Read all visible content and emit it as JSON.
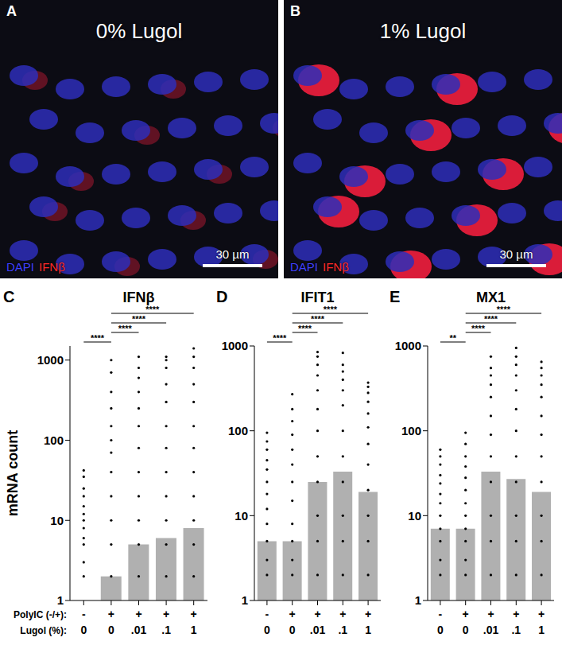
{
  "images": [
    {
      "panel": "A",
      "title": "0% Lugol",
      "stains": [
        {
          "name": "DAPI",
          "color": "#4040ff"
        },
        {
          "name": "IFNβ",
          "color": "#ff2a2a"
        }
      ],
      "scale_bar": "30 µm"
    },
    {
      "panel": "B",
      "title": "1% Lugol",
      "stains": [
        {
          "name": "DAPI",
          "color": "#4040ff"
        },
        {
          "name": "IFNβ",
          "color": "#ff2a2a"
        }
      ],
      "scale_bar": "30 µm"
    }
  ],
  "x_row_labels": [
    "PolyIC (-/+):",
    "Lugol (%):"
  ],
  "chart_data": [
    {
      "panel": "C",
      "type": "bar",
      "title": "IFNβ",
      "y_label": "mRNA count",
      "categories": [
        "0",
        "0",
        ".01",
        ".1",
        "1"
      ],
      "polyic": [
        "-",
        "+",
        "+",
        "+",
        "+"
      ],
      "values": [
        1,
        2,
        5,
        6,
        8
      ],
      "color": "#b0b0b0",
      "point_color": "#000000",
      "points": [
        [
          2,
          3,
          5,
          6,
          8,
          10,
          12,
          15,
          20,
          25,
          35,
          42
        ],
        [
          2,
          5,
          10,
          20,
          40,
          70,
          100,
          150,
          250,
          400,
          700,
          1000
        ],
        [
          2,
          5,
          10,
          20,
          40,
          80,
          150,
          250,
          400,
          600,
          800,
          1100
        ],
        [
          2,
          5,
          10,
          20,
          40,
          80,
          150,
          300,
          500,
          800,
          1000,
          1100
        ],
        [
          2,
          5,
          10,
          20,
          40,
          80,
          150,
          300,
          500,
          800,
          1100,
          1400
        ]
      ],
      "log": "y",
      "ylim": [
        1,
        1500
      ],
      "yticks": [
        1,
        10,
        100,
        1000
      ],
      "annotations": [
        {
          "from": 0,
          "to": 1,
          "label": "****"
        },
        {
          "from": 1,
          "to": 2,
          "label": "****"
        },
        {
          "from": 1,
          "to": 3,
          "label": "****"
        },
        {
          "from": 1,
          "to": 4,
          "label": "****"
        }
      ]
    },
    {
      "panel": "D",
      "type": "bar",
      "title": "IFIT1",
      "categories": [
        "0",
        "0",
        ".01",
        ".1",
        "1"
      ],
      "polyic": [
        "-",
        "+",
        "+",
        "+",
        "+"
      ],
      "values": [
        5,
        5,
        25,
        33,
        19
      ],
      "color": "#b0b0b0",
      "point_color": "#000000",
      "points": [
        [
          2,
          3,
          5,
          8,
          12,
          18,
          25,
          35,
          45,
          60,
          75,
          95
        ],
        [
          2,
          3,
          5,
          8,
          15,
          25,
          40,
          60,
          90,
          130,
          180,
          270
        ],
        [
          2,
          5,
          10,
          25,
          50,
          100,
          180,
          300,
          450,
          600,
          750,
          850
        ],
        [
          2,
          5,
          10,
          25,
          50,
          100,
          200,
          300,
          400,
          500,
          600,
          830
        ],
        [
          2,
          5,
          10,
          20,
          40,
          70,
          110,
          160,
          220,
          280,
          330,
          370
        ]
      ],
      "log": "y",
      "ylim": [
        1,
        1000
      ],
      "yticks": [
        1,
        10,
        100,
        1000
      ],
      "annotations": [
        {
          "from": 0,
          "to": 1,
          "label": "****"
        },
        {
          "from": 1,
          "to": 2,
          "label": "****"
        },
        {
          "from": 1,
          "to": 3,
          "label": "****"
        },
        {
          "from": 1,
          "to": 4,
          "label": "****"
        }
      ]
    },
    {
      "panel": "E",
      "type": "bar",
      "title": "MX1",
      "categories": [
        "0",
        "0",
        ".01",
        ".1",
        "1"
      ],
      "polyic": [
        "-",
        "+",
        "+",
        "+",
        "+"
      ],
      "values": [
        7,
        7,
        33,
        27,
        19
      ],
      "color": "#b0b0b0",
      "point_color": "#000000",
      "points": [
        [
          2,
          3,
          5,
          7,
          10,
          14,
          18,
          24,
          30,
          40,
          50,
          60
        ],
        [
          2,
          3,
          5,
          7,
          10,
          14,
          20,
          28,
          38,
          50,
          70,
          95
        ],
        [
          2,
          5,
          10,
          25,
          50,
          90,
          150,
          250,
          350,
          450,
          550,
          750
        ],
        [
          2,
          5,
          10,
          25,
          50,
          100,
          180,
          300,
          450,
          600,
          750,
          950
        ],
        [
          2,
          5,
          10,
          25,
          50,
          90,
          150,
          250,
          350,
          450,
          550,
          650
        ]
      ],
      "log": "y",
      "ylim": [
        1,
        1000
      ],
      "yticks": [
        1,
        10,
        100,
        1000
      ],
      "annotations": [
        {
          "from": 0,
          "to": 1,
          "label": "**"
        },
        {
          "from": 1,
          "to": 2,
          "label": "****"
        },
        {
          "from": 1,
          "to": 3,
          "label": "****"
        },
        {
          "from": 1,
          "to": 4,
          "label": "****"
        }
      ]
    }
  ]
}
